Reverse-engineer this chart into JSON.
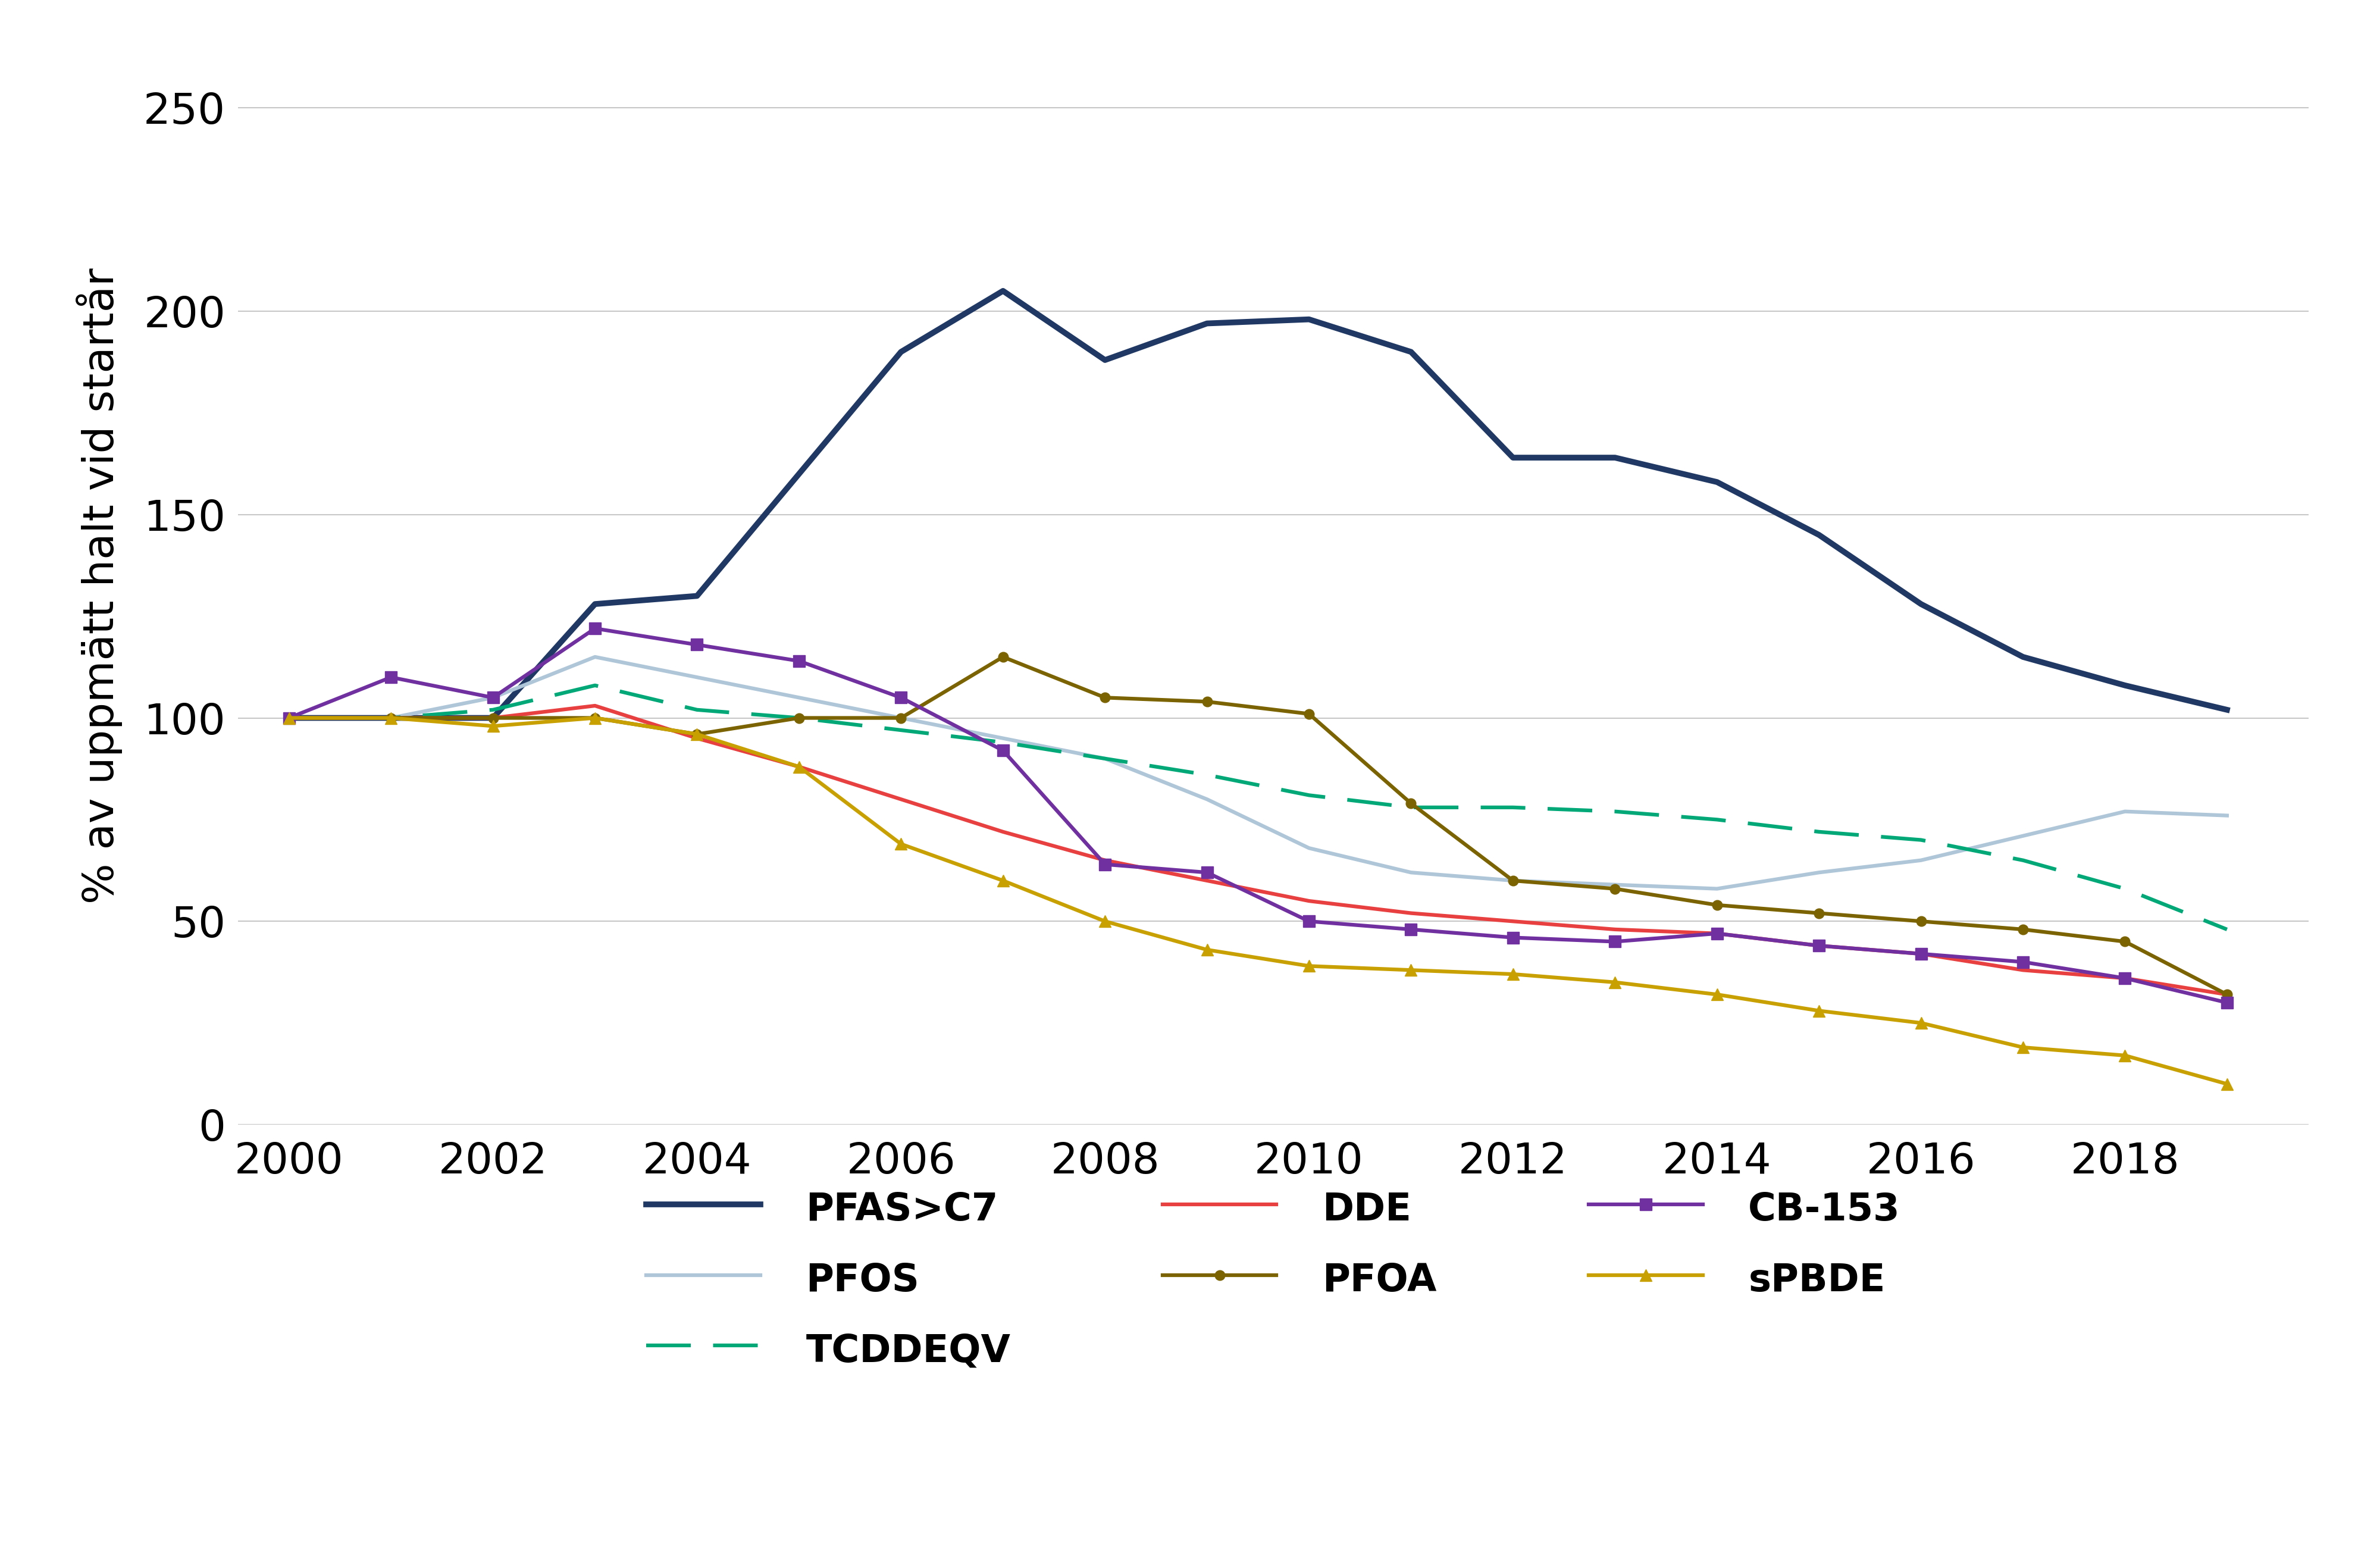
{
  "title": "",
  "ylabel": "% av uppmätt halt vid startår",
  "xlim": [
    1999.5,
    2019.8
  ],
  "ylim": [
    0,
    265
  ],
  "yticks": [
    0,
    50,
    100,
    150,
    200,
    250
  ],
  "xticks": [
    2000,
    2002,
    2004,
    2006,
    2008,
    2010,
    2012,
    2014,
    2016,
    2018
  ],
  "background_color": "#ffffff",
  "grid_color": "#c8c8c8",
  "series": {
    "PFAS>C7": {
      "color": "#1f3864",
      "linestyle": "-",
      "linewidth": 7.0,
      "marker": null,
      "markersize": 0,
      "dashes": null,
      "years": [
        2000,
        2001,
        2002,
        2003,
        2004,
        2005,
        2006,
        2007,
        2008,
        2009,
        2010,
        2011,
        2012,
        2013,
        2014,
        2015,
        2016,
        2017,
        2018,
        2019
      ],
      "values": [
        100,
        100,
        100,
        128,
        130,
        160,
        190,
        205,
        188,
        197,
        198,
        190,
        164,
        164,
        158,
        145,
        128,
        115,
        108,
        102
      ]
    },
    "PFOS": {
      "color": "#aec6d8",
      "linestyle": "-",
      "linewidth": 4.5,
      "marker": null,
      "markersize": 0,
      "dashes": null,
      "years": [
        2000,
        2001,
        2002,
        2003,
        2004,
        2005,
        2006,
        2007,
        2008,
        2009,
        2010,
        2011,
        2012,
        2013,
        2014,
        2015,
        2016,
        2017,
        2018,
        2019
      ],
      "values": [
        100,
        100,
        105,
        115,
        110,
        105,
        100,
        95,
        90,
        80,
        68,
        62,
        60,
        59,
        58,
        62,
        65,
        71,
        77,
        76
      ]
    },
    "TCDDEQV": {
      "color": "#00a878",
      "linestyle": "--",
      "linewidth": 4.5,
      "marker": null,
      "markersize": 0,
      "dashes": [
        12,
        6
      ],
      "years": [
        2000,
        2001,
        2002,
        2003,
        2004,
        2005,
        2006,
        2007,
        2008,
        2009,
        2010,
        2011,
        2012,
        2013,
        2014,
        2015,
        2016,
        2017,
        2018,
        2019
      ],
      "values": [
        100,
        100,
        102,
        108,
        102,
        100,
        97,
        94,
        90,
        86,
        81,
        78,
        78,
        77,
        75,
        72,
        70,
        65,
        58,
        48
      ]
    },
    "DDE": {
      "color": "#e84040",
      "linestyle": "-",
      "linewidth": 4.5,
      "marker": null,
      "markersize": 0,
      "dashes": null,
      "years": [
        2000,
        2001,
        2002,
        2003,
        2004,
        2005,
        2006,
        2007,
        2008,
        2009,
        2010,
        2011,
        2012,
        2013,
        2014,
        2015,
        2016,
        2017,
        2018,
        2019
      ],
      "values": [
        100,
        100,
        100,
        103,
        95,
        88,
        80,
        72,
        65,
        60,
        55,
        52,
        50,
        48,
        47,
        44,
        42,
        38,
        36,
        32
      ]
    },
    "PFOA": {
      "color": "#7a6300",
      "linestyle": "-",
      "linewidth": 4.5,
      "marker": "o",
      "markersize": 12,
      "dashes": null,
      "years": [
        2000,
        2001,
        2002,
        2003,
        2004,
        2005,
        2006,
        2007,
        2008,
        2009,
        2010,
        2011,
        2012,
        2013,
        2014,
        2015,
        2016,
        2017,
        2018,
        2019
      ],
      "values": [
        100,
        100,
        100,
        100,
        96,
        100,
        100,
        115,
        105,
        104,
        101,
        79,
        60,
        58,
        54,
        52,
        50,
        48,
        45,
        32
      ]
    },
    "CB-153": {
      "color": "#7030a0",
      "linestyle": "-",
      "linewidth": 4.5,
      "marker": "s",
      "markersize": 14,
      "dashes": null,
      "years": [
        2000,
        2001,
        2002,
        2003,
        2004,
        2005,
        2006,
        2007,
        2008,
        2009,
        2010,
        2011,
        2012,
        2013,
        2014,
        2015,
        2016,
        2017,
        2018,
        2019
      ],
      "values": [
        100,
        110,
        105,
        122,
        118,
        114,
        105,
        92,
        64,
        62,
        50,
        48,
        46,
        45,
        47,
        44,
        42,
        40,
        36,
        30
      ]
    },
    "sPBDE": {
      "color": "#c8a000",
      "linestyle": "-",
      "linewidth": 4.5,
      "marker": "^",
      "markersize": 14,
      "dashes": null,
      "years": [
        2000,
        2001,
        2002,
        2003,
        2004,
        2005,
        2006,
        2007,
        2008,
        2009,
        2010,
        2011,
        2012,
        2013,
        2014,
        2015,
        2016,
        2017,
        2018,
        2019
      ],
      "values": [
        100,
        100,
        98,
        100,
        96,
        88,
        69,
        60,
        50,
        43,
        39,
        38,
        37,
        35,
        32,
        28,
        25,
        19,
        17,
        10
      ]
    }
  },
  "legend_order": [
    "PFAS>C7",
    "PFOS",
    "TCDDEQV",
    "DDE",
    "PFOA",
    "CB-153",
    "sPBDE"
  ],
  "ylabel_fontsize": 52,
  "tick_fontsize": 52,
  "legend_fontsize": 46
}
